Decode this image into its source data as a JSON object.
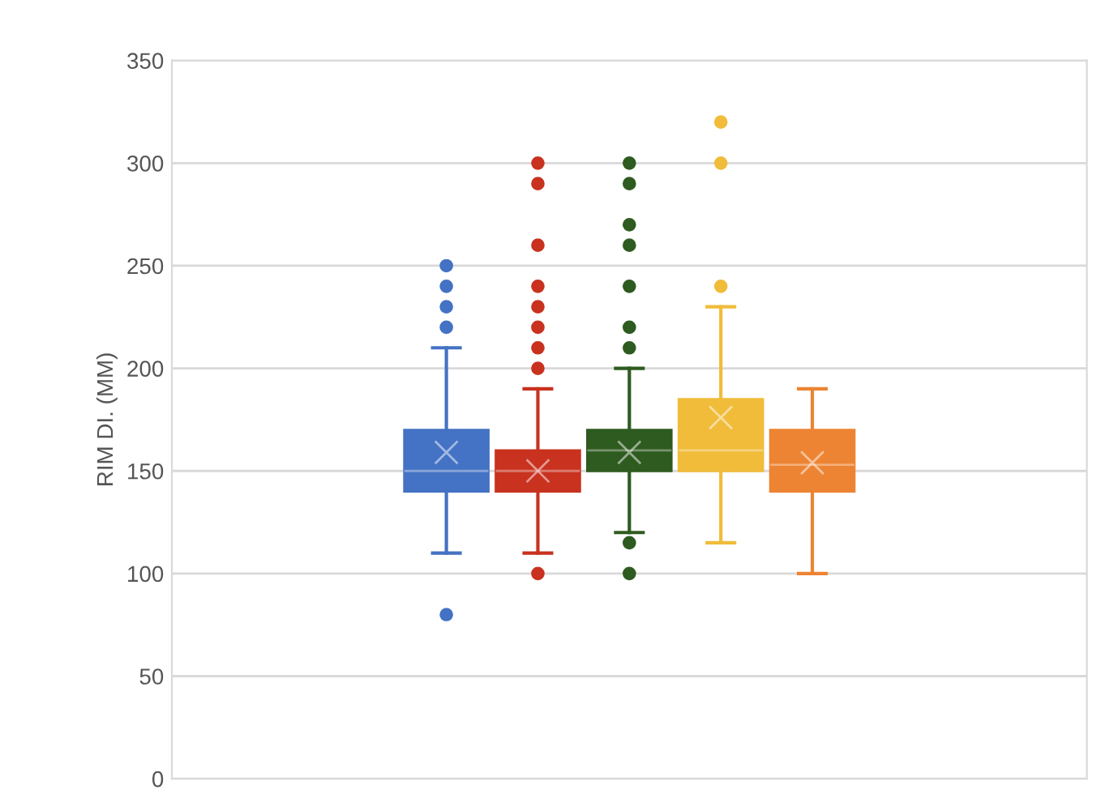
{
  "chart_data": {
    "type": "box",
    "ylabel": "RIM DI. (MM)",
    "categories": [
      null
    ],
    "ylim": [
      0,
      350
    ],
    "yticks": [
      0,
      50,
      100,
      150,
      200,
      250,
      300,
      350
    ],
    "grid": "y",
    "tick_labels": "y",
    "series": [
      {
        "color": "#4472c4",
        "boxes": [
          {
            "low": 110,
            "q1": 140,
            "median": 150,
            "q3": 170,
            "high": 210,
            "mean": 159,
            "outliers": [
              80,
              220,
              230,
              240,
              250
            ]
          }
        ]
      },
      {
        "color": "#c8321f",
        "boxes": [
          {
            "low": 110,
            "q1": 140,
            "median": 150,
            "q3": 160,
            "high": 190,
            "mean": 150,
            "outliers": [
              100,
              200,
              210,
              220,
              230,
              240,
              260,
              290,
              300
            ]
          }
        ]
      },
      {
        "color": "#2e5b1f",
        "boxes": [
          {
            "low": 120,
            "q1": 150,
            "median": 160,
            "q3": 170,
            "high": 200,
            "mean": 159,
            "outliers": [
              100,
              115,
              210,
              220,
              240,
              260,
              270,
              290,
              300
            ]
          }
        ]
      },
      {
        "color": "#f0bc3a",
        "boxes": [
          {
            "low": 115,
            "q1": 150,
            "median": 160,
            "q3": 185,
            "high": 230,
            "mean": 176,
            "outliers": [
              240,
              300,
              320
            ]
          }
        ]
      },
      {
        "color": "#ed8433",
        "boxes": [
          {
            "low": 100,
            "q1": 140,
            "median": 153,
            "q3": 170,
            "high": 190,
            "mean": 154
          }
        ]
      }
    ]
  }
}
